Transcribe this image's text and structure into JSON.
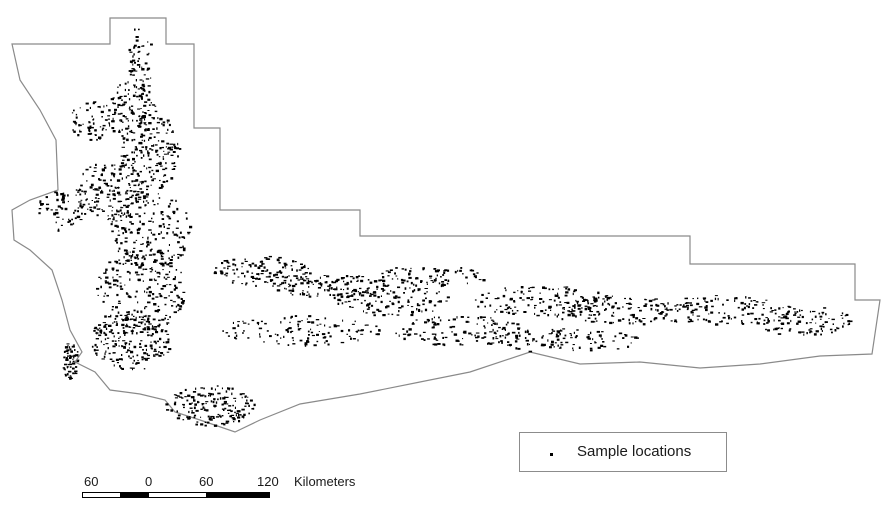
{
  "map": {
    "boundary_icon": "province-boundary-outline",
    "points_icon": "sample-location-dot",
    "colors": {
      "boundary": "#8a8a8a",
      "points": "#000000",
      "background": "#ffffff"
    }
  },
  "legend": {
    "symbol": "dot",
    "label": "Sample locations"
  },
  "scale_bar": {
    "ticks": [
      "60",
      "0",
      "60",
      "120"
    ],
    "unit": "Kilometers"
  }
}
